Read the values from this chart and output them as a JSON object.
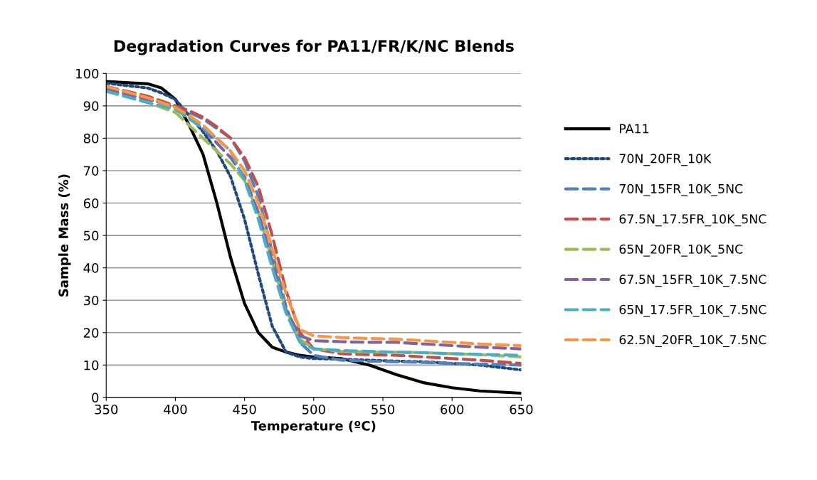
{
  "chart_data": {
    "type": "line",
    "title": "Degradation Curves for PA11/FR/K/NC Blends",
    "xlabel": "Temperature (ºC)",
    "ylabel": "Sample Mass (%)",
    "x": [
      350,
      380,
      390,
      400,
      410,
      420,
      430,
      440,
      450,
      460,
      470,
      480,
      490,
      500,
      520,
      540,
      560,
      580,
      600,
      620,
      650
    ],
    "xlim": [
      350,
      650
    ],
    "xticks": [
      350,
      400,
      450,
      500,
      550,
      600,
      650
    ],
    "ylim": [
      0,
      100
    ],
    "yticks": [
      0,
      10,
      20,
      30,
      40,
      50,
      60,
      70,
      80,
      90,
      100
    ],
    "grid": "y",
    "legend": "right",
    "marker": "none",
    "series": [
      {
        "name": "PA11",
        "color": "#000000",
        "line_style": "solid",
        "values": [
          97.5,
          96.8,
          95.5,
          92,
          84,
          75,
          60,
          43,
          29,
          20,
          15.5,
          14,
          13,
          12.5,
          12,
          10,
          7,
          4.5,
          3,
          2,
          1.3
        ]
      },
      {
        "name": "70N_20FR_10K",
        "color": "#1f497d",
        "line_style": "dotted",
        "values": [
          97,
          95.5,
          94,
          92,
          87,
          82,
          76,
          68,
          55,
          38,
          22,
          14,
          12.5,
          12,
          11.8,
          11.5,
          11.2,
          11,
          10.5,
          10,
          8.5
        ]
      },
      {
        "name": "70N_15FR_10K_5NC",
        "color": "#4f81bd",
        "line_style": "dashed",
        "values": [
          96,
          92,
          91,
          90,
          88,
          86,
          83,
          80,
          73,
          62,
          45,
          28,
          17,
          13,
          11.5,
          11.2,
          11,
          10.8,
          10.5,
          10.3,
          10
        ]
      },
      {
        "name": "67.5N_17.5FR_10K_5NC",
        "color": "#c0504d",
        "line_style": "dashed",
        "values": [
          96,
          93,
          91.5,
          90,
          88.5,
          86.5,
          83.5,
          80,
          74,
          65,
          50,
          33,
          20,
          15,
          13.5,
          13.2,
          13,
          12.5,
          12,
          11.5,
          10.5
        ]
      },
      {
        "name": "65N_20FR_10K_5NC",
        "color": "#9bbb59",
        "line_style": "dashed",
        "values": [
          95,
          91,
          89.5,
          88,
          84,
          80,
          76,
          72,
          67,
          57,
          42,
          27,
          18,
          15,
          14.2,
          14,
          14,
          13.8,
          13.5,
          13.2,
          12.5
        ]
      },
      {
        "name": "67.5N_15FR_10K_7.5NC",
        "color": "#8064a2",
        "line_style": "dashed",
        "values": [
          95,
          92,
          91,
          89.5,
          86.5,
          83,
          78.5,
          74,
          68,
          57,
          42,
          27,
          19,
          17.5,
          17.2,
          17,
          17,
          16.5,
          16,
          15.5,
          15
        ]
      },
      {
        "name": "65N_17.5FR_10K_7.5NC",
        "color": "#4bacc6",
        "line_style": "dashed",
        "values": [
          94.5,
          91,
          90,
          89,
          86,
          83,
          80,
          76,
          67,
          55,
          40,
          26,
          17,
          15,
          14.5,
          14.2,
          14,
          13.8,
          13.5,
          13.3,
          13
        ]
      },
      {
        "name": "62.5N_20FR_10K_7.5NC",
        "color": "#f79646",
        "line_style": "dashed",
        "values": [
          96,
          92.5,
          91,
          89.5,
          87,
          84,
          80,
          76,
          70,
          60,
          46,
          32,
          21,
          19,
          18.5,
          18.2,
          18,
          17.5,
          17,
          16.5,
          16
        ]
      }
    ]
  }
}
